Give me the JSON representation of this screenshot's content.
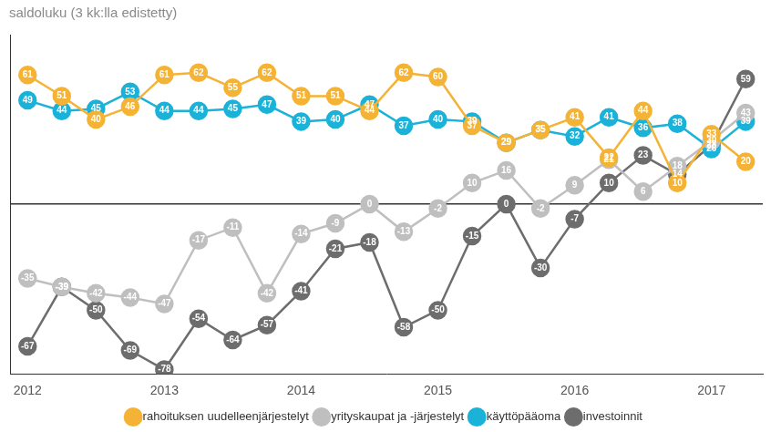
{
  "chart_data": {
    "type": "line",
    "title": "saldoluku (3 kk:lla edistetty)",
    "categories": [
      "2012",
      null,
      null,
      null,
      "2013",
      null,
      null,
      null,
      "2014",
      null,
      null,
      null,
      "2015",
      null,
      null,
      null,
      "2016",
      null,
      null,
      null,
      "2017",
      null
    ],
    "series": [
      {
        "name": "rahoituksen uudelleenjärjestelyt",
        "color": "#f5b335",
        "values": [
          61,
          51,
          40,
          46,
          61,
          62,
          55,
          62,
          51,
          51,
          44,
          62,
          60,
          37,
          29,
          35,
          41,
          22,
          44,
          10,
          33,
          20
        ]
      },
      {
        "name": "yrityskaupat ja -järjestelyt",
        "color": "#bfbfbf",
        "values": [
          -35,
          -39,
          -42,
          -44,
          -47,
          -17,
          -11,
          -42,
          -14,
          -9,
          0,
          -13,
          -2,
          10,
          16,
          -2,
          9,
          21,
          6,
          18,
          30,
          43
        ]
      },
      {
        "name": "käyttöpääoma",
        "color": "#1ab2d8",
        "values": [
          49,
          44,
          45,
          53,
          44,
          44,
          45,
          47,
          39,
          40,
          47,
          37,
          40,
          39,
          29,
          35,
          32,
          41,
          36,
          38,
          26,
          39
        ]
      },
      {
        "name": "investoinnit",
        "color": "#6d6d6d",
        "values": [
          -67,
          -39,
          -50,
          -69,
          -78,
          -54,
          -64,
          -57,
          -41,
          -21,
          -18,
          -58,
          -50,
          -15,
          0,
          -30,
          -7,
          10,
          23,
          14,
          28,
          59
        ]
      }
    ],
    "ylim": [
      -80,
      80
    ],
    "yticks": [
      0
    ],
    "grid": true,
    "tick_labels": "x",
    "legend": "bottom",
    "data_labels": true,
    "marker": "circle"
  }
}
